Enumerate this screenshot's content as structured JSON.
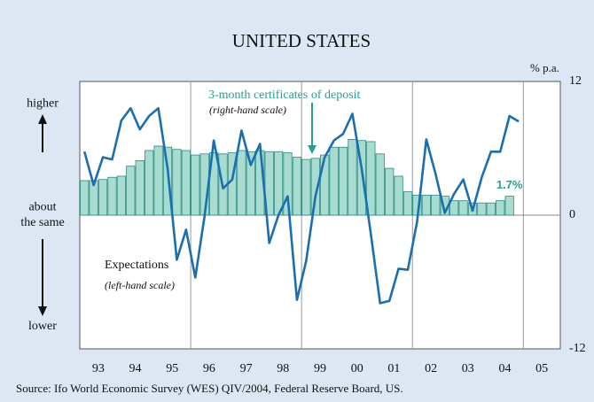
{
  "chart_data": {
    "type": "bar-line",
    "title": "UNITED STATES",
    "y2_unit": "% p.a.",
    "source": "Source: Ifo World Economic Survey (WES) QIV/2004, Federal Reserve Board, US.",
    "xlim": [
      1993,
      2006
    ],
    "xticks": [
      {
        "value": 1993.5,
        "label": "93"
      },
      {
        "value": 1994.5,
        "label": "94"
      },
      {
        "value": 1995.5,
        "label": "95"
      },
      {
        "value": 1996.5,
        "label": "96"
      },
      {
        "value": 1997.5,
        "label": "97"
      },
      {
        "value": 1998.5,
        "label": "98"
      },
      {
        "value": 1999.5,
        "label": "99"
      },
      {
        "value": 2000.5,
        "label": "00"
      },
      {
        "value": 2001.5,
        "label": "01"
      },
      {
        "value": 2002.5,
        "label": "02"
      },
      {
        "value": 2003.5,
        "label": "03"
      },
      {
        "value": 2004.5,
        "label": "04"
      },
      {
        "value": 2005.5,
        "label": "05"
      }
    ],
    "x_gridlines": [
      1996,
      1999,
      2002,
      2005
    ],
    "ylim": [
      -12,
      12
    ],
    "yticks": [
      {
        "value": 10,
        "label": "higher"
      },
      {
        "value": 0,
        "label": "about the same"
      },
      {
        "value": -10,
        "label": "lower"
      }
    ],
    "y2lim": [
      -12,
      12
    ],
    "y2ticks": [
      12,
      0,
      -12
    ],
    "x": [
      1993.125,
      1993.375,
      1993.625,
      1993.875,
      1994.125,
      1994.375,
      1994.625,
      1994.875,
      1995.125,
      1995.375,
      1995.625,
      1995.875,
      1996.125,
      1996.375,
      1996.625,
      1996.875,
      1997.125,
      1997.375,
      1997.625,
      1997.875,
      1998.125,
      1998.375,
      1998.625,
      1998.875,
      1999.125,
      1999.375,
      1999.625,
      1999.875,
      2000.125,
      2000.375,
      2000.625,
      2000.875,
      2001.125,
      2001.375,
      2001.625,
      2001.875,
      2002.125,
      2002.375,
      2002.625,
      2002.875,
      2003.125,
      2003.375,
      2003.625,
      2003.875,
      2004.125,
      2004.375,
      2004.625,
      2004.875
    ],
    "series": [
      {
        "name": "3-month certificates of deposit",
        "note": "(right-hand scale)",
        "type": "bar",
        "axis": "y2",
        "color": "#a9dcd0",
        "edge": "#2a8a80",
        "values": [
          3.1,
          3.1,
          3.2,
          3.4,
          3.5,
          4.4,
          4.9,
          5.8,
          6.2,
          6.1,
          5.9,
          5.8,
          5.4,
          5.5,
          5.6,
          5.5,
          5.6,
          5.8,
          5.7,
          5.8,
          5.7,
          5.7,
          5.6,
          5.2,
          5.0,
          5.1,
          5.4,
          6.1,
          6.1,
          6.8,
          6.7,
          6.6,
          5.5,
          4.2,
          3.5,
          2.1,
          1.8,
          1.8,
          1.8,
          1.7,
          1.3,
          1.3,
          1.1,
          1.1,
          1.1,
          1.3,
          1.7,
          null
        ],
        "value_labels": [
          null,
          null,
          null,
          null,
          null,
          null,
          null,
          null,
          null,
          null,
          null,
          null,
          null,
          null,
          null,
          null,
          null,
          null,
          null,
          null,
          null,
          null,
          null,
          null,
          null,
          null,
          null,
          null,
          null,
          null,
          null,
          null,
          null,
          null,
          null,
          null,
          null,
          null,
          null,
          null,
          null,
          null,
          null,
          null,
          null,
          null,
          "1.7%",
          null
        ]
      },
      {
        "name": "Expectations",
        "note": "(left-hand scale)",
        "type": "line",
        "color": "#1a6fb0",
        "values": [
          5.7,
          2.7,
          5.2,
          5.0,
          8.5,
          9.6,
          7.7,
          8.9,
          9.6,
          4.2,
          -4.0,
          -1.3,
          -5.6,
          -0.1,
          6.7,
          2.4,
          3.2,
          7.6,
          4.5,
          6.4,
          -2.5,
          0,
          1.7,
          -7.6,
          -4.1,
          1.7,
          5.2,
          6.7,
          7.3,
          9.1,
          4.2,
          -1.7,
          -7.9,
          -7.7,
          -4.8,
          -4.9,
          -0.6,
          6.8,
          3.7,
          0.2,
          1.9,
          3.2,
          0.4,
          3.4,
          5.7,
          5.7,
          8.9,
          8.4
        ]
      }
    ]
  }
}
